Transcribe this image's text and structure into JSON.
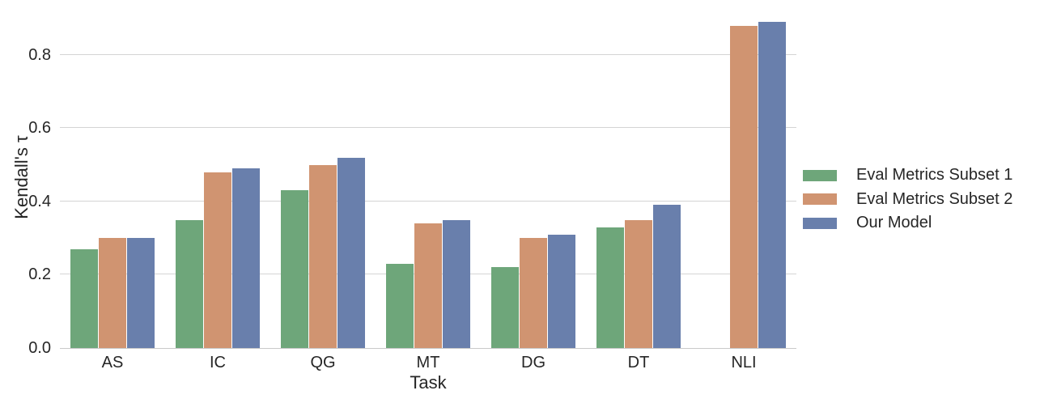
{
  "chart_data": {
    "type": "bar",
    "title": "",
    "xlabel": "Task",
    "ylabel": "Kendall's τ",
    "categories": [
      "AS",
      "IC",
      "QG",
      "MT",
      "DG",
      "DT",
      "NLI"
    ],
    "series": [
      {
        "name": "Eval Metrics Subset 1",
        "color": "#6EA67A",
        "values": [
          0.27,
          0.35,
          0.43,
          0.23,
          0.22,
          0.33,
          0.0
        ]
      },
      {
        "name": "Eval Metrics Subset 2",
        "color": "#D09471",
        "values": [
          0.3,
          0.48,
          0.5,
          0.34,
          0.3,
          0.35,
          0.88
        ]
      },
      {
        "name": "Our Model",
        "color": "#697FAC",
        "values": [
          0.3,
          0.49,
          0.52,
          0.35,
          0.31,
          0.39,
          0.89
        ]
      }
    ],
    "yticks": [
      0.0,
      0.2,
      0.4,
      0.6,
      0.8
    ],
    "yticklabels": [
      "0.0",
      "0.2",
      "0.4",
      "0.6",
      "0.8"
    ],
    "ylim": [
      0,
      0.93
    ],
    "grid": true,
    "grid_color": "#d4d4d4",
    "text_color": "#262626",
    "background": "#ffffff",
    "legend_position": "right"
  }
}
